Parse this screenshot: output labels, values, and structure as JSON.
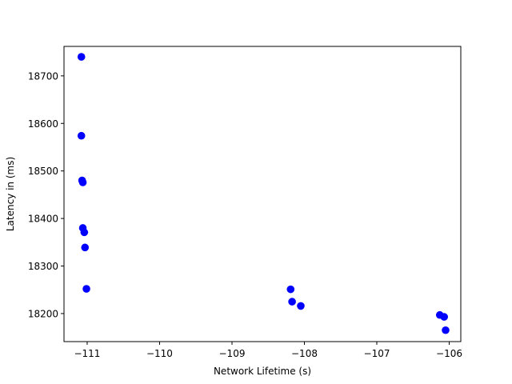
{
  "chart_data": {
    "type": "scatter",
    "title": "",
    "xlabel": "Network Lifetime (s)",
    "ylabel": "Latency in (ms)",
    "xlim": [
      -111.32,
      -105.84
    ],
    "ylim": [
      18141,
      18762
    ],
    "xticks": [
      -111,
      -110,
      -109,
      -108,
      -107,
      -106
    ],
    "xtick_labels": [
      "−111",
      "−110",
      "−109",
      "−108",
      "−107",
      "−106"
    ],
    "yticks": [
      18200,
      18300,
      18400,
      18500,
      18600,
      18700
    ],
    "ytick_labels": [
      "18200",
      "18300",
      "18400",
      "18500",
      "18600",
      "18700"
    ],
    "grid": false,
    "marker_color": "#0000ff",
    "series": [
      {
        "points": [
          {
            "x": -111.08,
            "y": 18740
          },
          {
            "x": -111.08,
            "y": 18574
          },
          {
            "x": -111.07,
            "y": 18480
          },
          {
            "x": -111.06,
            "y": 18476
          },
          {
            "x": -111.06,
            "y": 18380
          },
          {
            "x": -111.04,
            "y": 18371
          },
          {
            "x": -111.03,
            "y": 18339
          },
          {
            "x": -111.01,
            "y": 18252
          },
          {
            "x": -108.19,
            "y": 18251
          },
          {
            "x": -108.17,
            "y": 18225
          },
          {
            "x": -108.05,
            "y": 18216
          },
          {
            "x": -106.13,
            "y": 18197
          },
          {
            "x": -106.07,
            "y": 18193
          },
          {
            "x": -106.05,
            "y": 18165
          }
        ]
      }
    ]
  }
}
